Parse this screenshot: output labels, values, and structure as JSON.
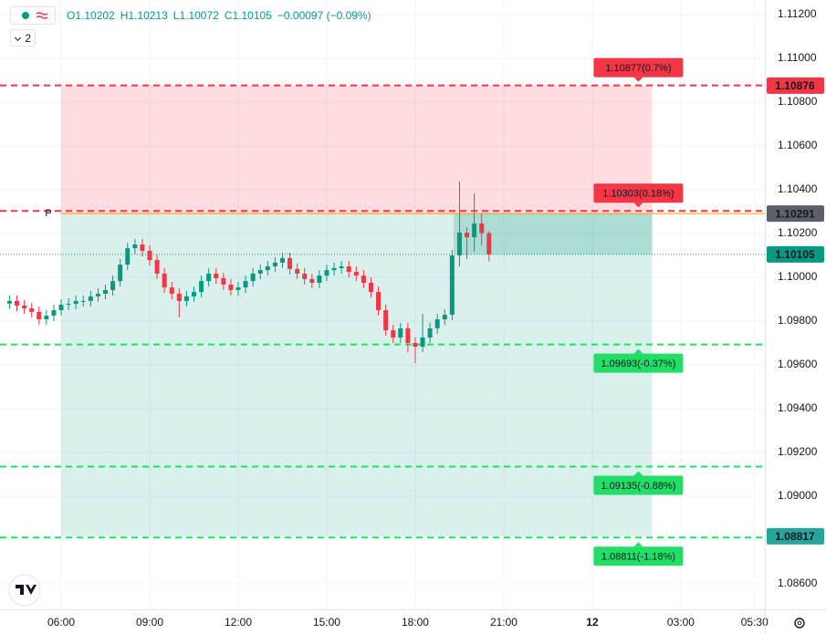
{
  "chart_data": {
    "type": "candlestick",
    "legend_values": [
      "O1.10202",
      "H1.10213",
      "L1.10072",
      "C1.10105",
      "−0.00097 (−0.09%)"
    ],
    "indicators_badge": "2",
    "open": [
      1.0988,
      1.09892,
      1.09871,
      1.09858,
      1.09842,
      1.09808,
      1.09825,
      1.0985,
      1.09875,
      1.09879,
      1.09892,
      1.09892,
      1.09913,
      1.09925,
      1.09942,
      1.09983,
      1.10058,
      1.10133,
      1.1015,
      1.10121,
      1.10079,
      1.10017,
      1.09954,
      1.09925,
      1.09892,
      1.09913,
      1.09933,
      1.09983,
      1.10017,
      1.09996,
      1.09967,
      1.09942,
      1.09954,
      1.09983,
      1.10017,
      1.10033,
      1.1005,
      1.10067,
      1.10088,
      1.10038,
      1.10017,
      1.09992,
      1.09975,
      1.10008,
      1.10033,
      1.10042,
      1.1005,
      1.10025,
      1.10008,
      1.09975,
      1.09933,
      1.0985,
      1.09758,
      1.09725,
      1.09767,
      1.097,
      1.09683,
      1.09725,
      1.09767,
      1.09808,
      1.09829,
      1.101,
      1.10204,
      1.10183,
      1.10246,
      1.10202
    ],
    "high": [
      1.09917,
      1.09917,
      1.09896,
      1.09883,
      1.09867,
      1.0985,
      1.09875,
      1.099,
      1.09904,
      1.09917,
      1.09917,
      1.09938,
      1.0995,
      1.09967,
      1.10008,
      1.10083,
      1.10158,
      1.10175,
      1.10175,
      1.10146,
      1.10104,
      1.10042,
      1.09979,
      1.0995,
      1.09938,
      1.09958,
      1.10008,
      1.10042,
      1.10042,
      1.10021,
      1.09992,
      1.09979,
      1.10008,
      1.10042,
      1.10058,
      1.10075,
      1.10092,
      1.10113,
      1.10113,
      1.10063,
      1.10042,
      1.10017,
      1.10033,
      1.10058,
      1.10067,
      1.10075,
      1.10075,
      1.1005,
      1.10033,
      1.1,
      1.09958,
      1.09875,
      1.09783,
      1.09792,
      1.09792,
      1.09725,
      1.09833,
      1.09792,
      1.09833,
      1.09854,
      1.10125,
      1.10438,
      1.10229,
      1.10383,
      1.10292,
      1.10213
    ],
    "low": [
      1.09855,
      1.09846,
      1.09833,
      1.09817,
      1.09783,
      1.09783,
      1.098,
      1.09825,
      1.0985,
      1.09854,
      1.09867,
      1.09867,
      1.09888,
      1.099,
      1.09917,
      1.09958,
      1.10033,
      1.10108,
      1.10096,
      1.10054,
      1.09992,
      1.09929,
      1.099,
      1.09817,
      1.09867,
      1.09888,
      1.09908,
      1.09958,
      1.09971,
      1.09942,
      1.09917,
      1.09917,
      1.09929,
      1.09958,
      1.09992,
      1.10008,
      1.10025,
      1.10042,
      1.10013,
      1.09992,
      1.09967,
      1.0995,
      1.0995,
      1.09983,
      1.10008,
      1.10017,
      1.1,
      1.09983,
      1.0995,
      1.09908,
      1.09825,
      1.09733,
      1.097,
      1.097,
      1.09658,
      1.09608,
      1.09658,
      1.097,
      1.09742,
      1.09783,
      1.09804,
      1.1005,
      1.10083,
      1.10117,
      1.10146,
      1.10072
    ],
    "close": [
      1.09892,
      1.09871,
      1.09858,
      1.09842,
      1.09808,
      1.09825,
      1.0985,
      1.09875,
      1.09879,
      1.09892,
      1.09892,
      1.09913,
      1.09925,
      1.09942,
      1.09983,
      1.10058,
      1.10133,
      1.1015,
      1.10121,
      1.10079,
      1.10017,
      1.09954,
      1.09925,
      1.09892,
      1.09913,
      1.09933,
      1.09983,
      1.10017,
      1.09996,
      1.09967,
      1.09942,
      1.09954,
      1.09983,
      1.10017,
      1.10033,
      1.1005,
      1.10067,
      1.10088,
      1.10038,
      1.10017,
      1.09992,
      1.09975,
      1.10008,
      1.10033,
      1.10042,
      1.1005,
      1.10025,
      1.10008,
      1.09975,
      1.09933,
      1.0985,
      1.09758,
      1.09725,
      1.09767,
      1.097,
      1.09683,
      1.09725,
      1.09767,
      1.09808,
      1.09829,
      1.101,
      1.10204,
      1.10183,
      1.10246,
      1.10202,
      1.10105
    ],
    "up_color": "#089981",
    "down_color": "#f23645",
    "xlim": [
      -1.29,
      102.39
    ],
    "xticks": [
      {
        "value": 7,
        "label": "06:00"
      },
      {
        "value": 19,
        "label": "09:00"
      },
      {
        "value": 31,
        "label": "12:00"
      },
      {
        "value": 43,
        "label": "15:00"
      },
      {
        "value": 55,
        "label": "18:00"
      },
      {
        "value": 67,
        "label": "21:00"
      },
      {
        "value": 79,
        "label": "12"
      },
      {
        "value": 91,
        "label": "03:00"
      },
      {
        "value": 101,
        "label": "05:30"
      }
    ],
    "ylim": [
      1.08483,
      1.11267
    ],
    "yticks": [
      {
        "value": 1.086,
        "label": "1.08600"
      },
      {
        "value": 1.088,
        "label": "1.08800"
      },
      {
        "value": 1.09,
        "label": "1.09000"
      },
      {
        "value": 1.092,
        "label": "1.09200"
      },
      {
        "value": 1.094,
        "label": "1.09400"
      },
      {
        "value": 1.096,
        "label": "1.09600"
      },
      {
        "value": 1.098,
        "label": "1.09800"
      },
      {
        "value": 1.1,
        "label": "1.10000"
      },
      {
        "value": 1.102,
        "label": "1.10200"
      },
      {
        "value": 1.104,
        "label": "1.10400"
      },
      {
        "value": 1.106,
        "label": "1.10600"
      },
      {
        "value": 1.108,
        "label": "1.10800"
      },
      {
        "value": 1.11,
        "label": "1.11000"
      },
      {
        "value": 1.112,
        "label": "1.11200"
      }
    ],
    "grid": true,
    "position": {
      "start": 7,
      "end": 87.1,
      "entry": 1.10291,
      "target": 1.10876,
      "stop": 1.08817,
      "live_from": 60.2
    },
    "pivot": {
      "label": "P",
      "value": 1.10291,
      "color": "#ff9800"
    },
    "last_price": 1.10105,
    "levels": [
      {
        "value": 1.10877,
        "label": "1.10877(0.7%)",
        "color": "#f23645"
      },
      {
        "value": 1.10303,
        "label": "1.10303(0.18%)",
        "color": "#f23645"
      },
      {
        "value": 1.09693,
        "label": "1.09693(-0.37%)",
        "color": "#22dd66"
      },
      {
        "value": 1.09135,
        "label": "1.09135(-0.88%)",
        "color": "#22dd66"
      },
      {
        "value": 1.08811,
        "label": "1.08811(-1.18%)",
        "color": "#22dd66"
      }
    ],
    "price_tags": [
      {
        "value": 1.10876,
        "label": "1.10876",
        "color": "#f23645"
      },
      {
        "value": 1.10291,
        "label": "1.10291",
        "color": "#5d606b"
      },
      {
        "value": 1.10105,
        "label": "1.10105",
        "color": "#089981"
      },
      {
        "value": 1.08817,
        "label": "1.08817",
        "color": "#26a69a"
      }
    ]
  }
}
